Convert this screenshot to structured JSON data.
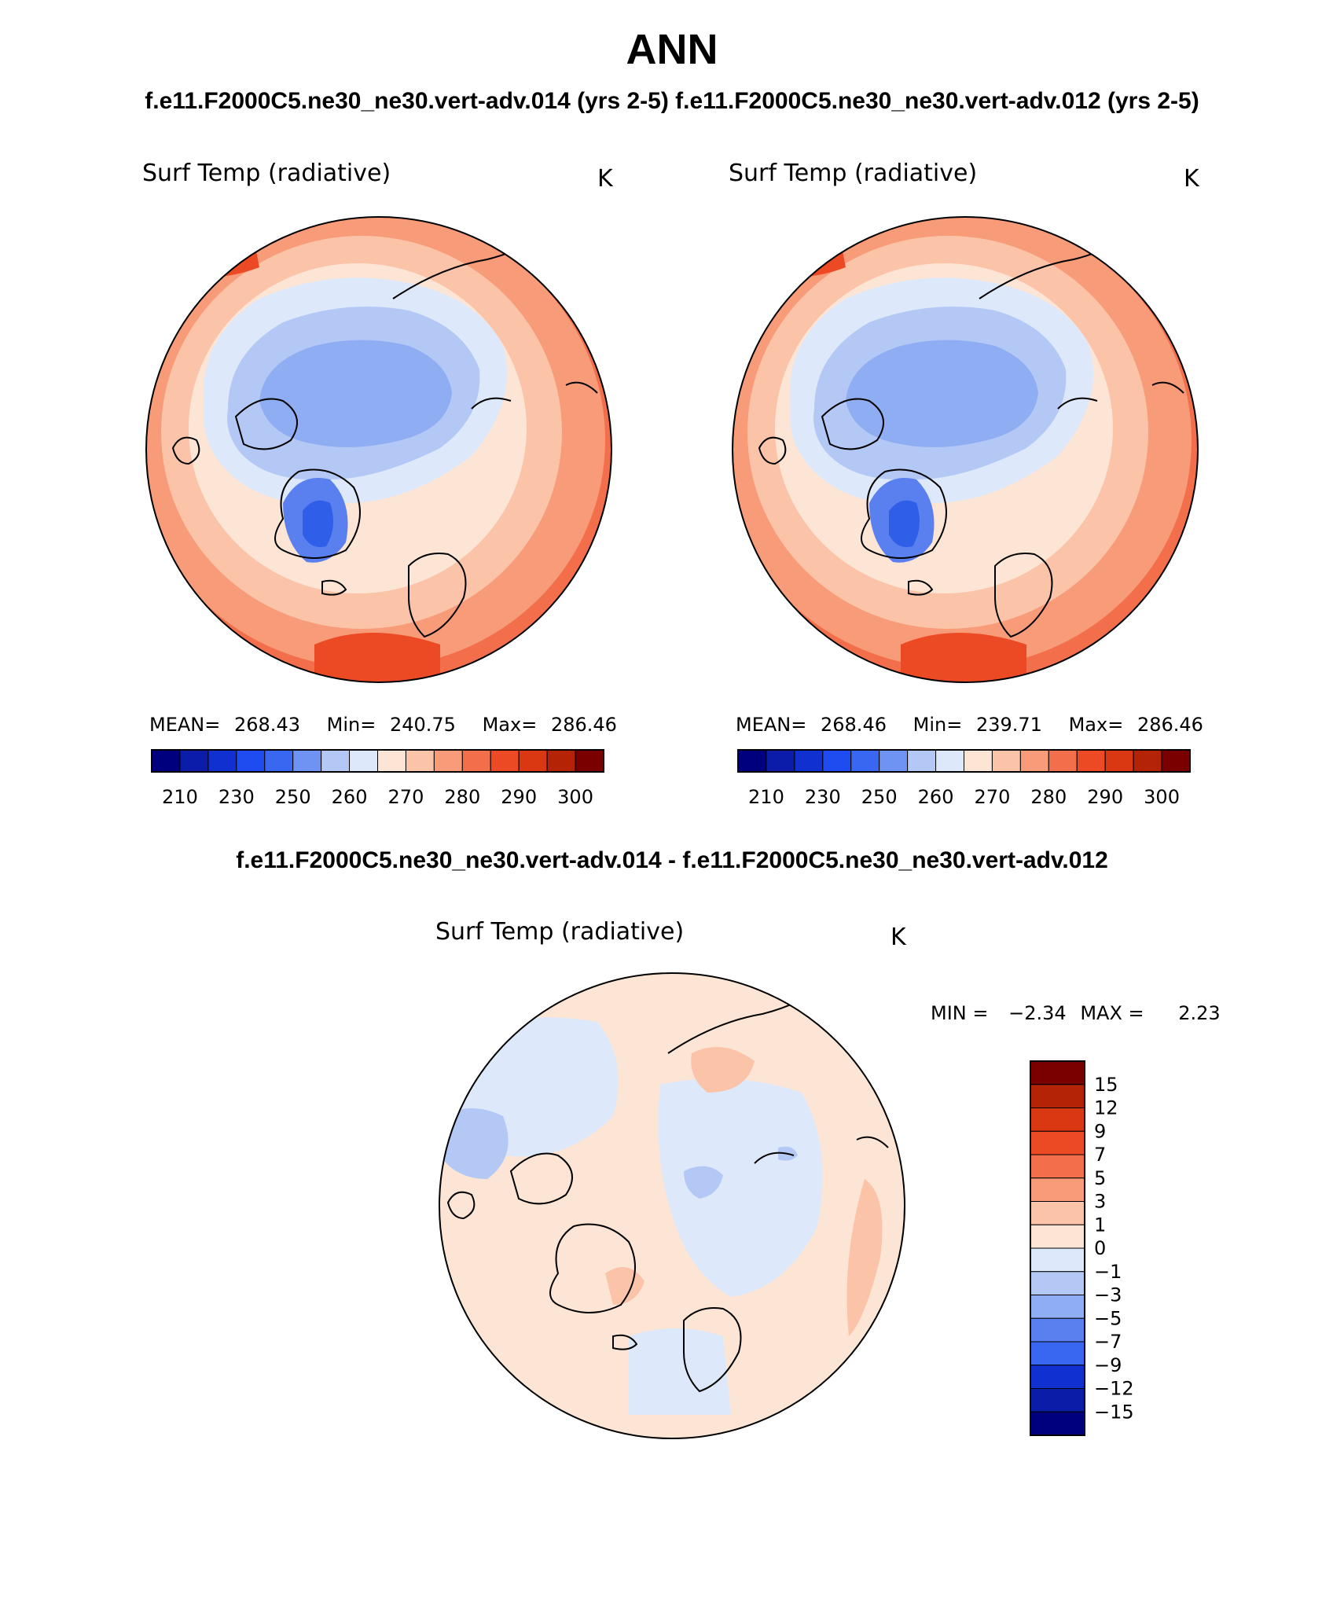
{
  "figure": {
    "title": "ANN",
    "case1": "f.e11.F2000C5.ne30_ne30.vert-adv.014 (yrs 2-5)",
    "case2": "f.e11.F2000C5.ne30_ne30.vert-adv.012 (yrs 2-5)",
    "diff_title": "f.e11.F2000C5.ne30_ne30.vert-adv.014 - f.e11.F2000C5.ne30_ne30.vert-adv.012"
  },
  "panels": [
    {
      "variable": "Surf Temp (radiative)",
      "units": "K",
      "mean_label": "MEAN=",
      "mean": "268.43",
      "min_label": "Min=",
      "min": "240.75",
      "max_label": "Max=",
      "max": "286.46"
    },
    {
      "variable": "Surf Temp (radiative)",
      "units": "K",
      "mean_label": "MEAN=",
      "mean": "268.46",
      "min_label": "Min=",
      "min": "239.71",
      "max_label": "Max=",
      "max": "286.46"
    }
  ],
  "diff_panel": {
    "variable": "Surf Temp (radiative)",
    "units": "K",
    "min_label": "MIN =",
    "min": "−2.34",
    "max_label": "MAX =",
    "max": "2.23"
  },
  "colorbar_abs": {
    "colors": [
      "#00007f",
      "#0a1ca8",
      "#1030d0",
      "#1f4cf0",
      "#3a67f2",
      "#6f93f2",
      "#b4c8f6",
      "#dde9fa",
      "#fde5d6",
      "#fbc4a9",
      "#f89b78",
      "#f36e4b",
      "#ec4a24",
      "#d93812",
      "#b42306",
      "#7a0000"
    ],
    "labels": [
      "210",
      "230",
      "250",
      "260",
      "270",
      "280",
      "290",
      "300"
    ]
  },
  "colorbar_diff": {
    "colors": [
      "#7a0000",
      "#b42306",
      "#d93812",
      "#ec4a24",
      "#f36e4b",
      "#f89b78",
      "#fbc4a9",
      "#fde5d6",
      "#dde9fa",
      "#b4c8f6",
      "#8fadf2",
      "#5a80f0",
      "#3a67f2",
      "#1030d0",
      "#0a1ca8",
      "#00007f"
    ],
    "labels": [
      "15",
      "12",
      "9",
      "7",
      "5",
      "3",
      "1",
      "0",
      "−1",
      "−3",
      "−5",
      "−7",
      "−9",
      "−12",
      "−15"
    ]
  },
  "map_colors": {
    "warm_dark": "#ec4a24",
    "warm_mid": "#f36e4b",
    "warm_light": "#f89b78",
    "warm_pale": "#fbc4a9",
    "warm_faint": "#fde5d6",
    "cold_faint": "#dde9fa",
    "cold_light": "#b4c8f6",
    "cold_mid": "#8fadf2",
    "cold_dark": "#5a80f0",
    "cold_deep": "#2f5ee8"
  }
}
